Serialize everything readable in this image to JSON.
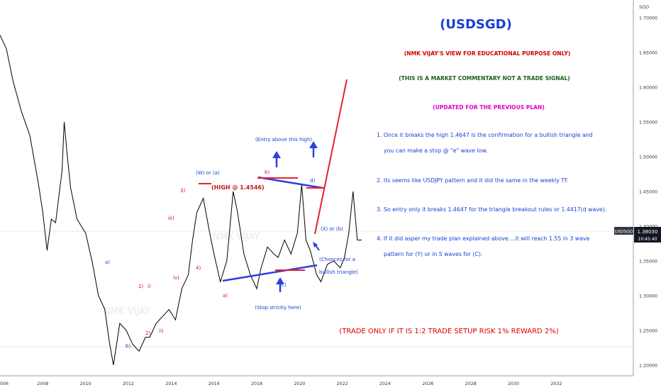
{
  "chart_data": {
    "type": "line",
    "symbol": "USDSGD",
    "title": "(USDSGD)",
    "currency": "SGD",
    "last_price": "1.38030",
    "countdown": "10:45:40",
    "price_badge_label": "USDSGD",
    "price_badge_value": "1.38030",
    "ylim": [
      1.1845,
      1.7255
    ],
    "xlim": [
      2006.0,
      2035.6
    ],
    "y_ticks": [
      "1.70000",
      "1.65000",
      "1.60000",
      "1.55000",
      "1.50000",
      "1.45000",
      "1.40000",
      "1.35000",
      "1.30000",
      "1.25000",
      "1.20000"
    ],
    "x_ticks": [
      "006",
      "2008",
      "2010",
      "2012",
      "2014",
      "2016",
      "2018",
      "2020",
      "2022",
      "2024",
      "2026",
      "2028",
      "2030",
      "2032"
    ],
    "series": [
      {
        "x": [
          2006.0,
          2006.3,
          2006.6,
          2007.0,
          2007.4,
          2007.8,
          2008.0,
          2008.2,
          2008.4,
          2008.6,
          2008.9,
          2009.0,
          2009.15,
          2009.3,
          2009.6,
          2010.0,
          2010.3,
          2010.6,
          2010.9,
          2011.1,
          2011.3,
          2011.6,
          2011.9,
          2012.2,
          2012.5,
          2012.8,
          2013.0,
          2013.3,
          2013.6,
          2013.9,
          2014.2,
          2014.5,
          2014.8,
          2015.0,
          2015.2,
          2015.5,
          2015.8,
          2016.0,
          2016.3,
          2016.6,
          2016.9,
          2017.1,
          2017.4,
          2017.7,
          2018.0,
          2018.2,
          2018.5,
          2018.8,
          2019.0,
          2019.3,
          2019.6,
          2019.9,
          2020.1,
          2020.3,
          2020.5,
          2020.8,
          2021.0,
          2021.3,
          2021.6,
          2021.9,
          2022.1,
          2022.3,
          2022.5,
          2022.7,
          2022.9
        ],
        "y": [
          1.675,
          1.655,
          1.61,
          1.565,
          1.53,
          1.46,
          1.42,
          1.365,
          1.41,
          1.405,
          1.48,
          1.55,
          1.5,
          1.455,
          1.41,
          1.39,
          1.35,
          1.3,
          1.28,
          1.235,
          1.2,
          1.26,
          1.25,
          1.23,
          1.22,
          1.24,
          1.24,
          1.26,
          1.27,
          1.28,
          1.265,
          1.31,
          1.33,
          1.38,
          1.42,
          1.44,
          1.39,
          1.36,
          1.32,
          1.35,
          1.45,
          1.42,
          1.36,
          1.33,
          1.31,
          1.34,
          1.37,
          1.36,
          1.355,
          1.38,
          1.36,
          1.39,
          1.46,
          1.38,
          1.365,
          1.33,
          1.32,
          1.345,
          1.35,
          1.34,
          1.355,
          1.39,
          1.45,
          1.38,
          1.38
        ]
      }
    ]
  },
  "annotations": {
    "disclaimer": "(NMK VIJAY'S VIEW FOR EDUCATIONAL PURPOSE ONLY)",
    "commentary": "(THIS IS A MARKET COMMENTARY NOT A TRADE SIGNAL)",
    "updated": "(UPDATED FOR THE PREVIOUS PLAN)",
    "points": [
      "1. Once it breaks the high 1.4647 is the confirmation for a bullish triangle and",
      "you can make a stop @ \"e\" wave low.",
      "2. Its seems like USDJPY pattern and it did the same in the weekly TF.",
      "3. So entry only it breaks 1.4647 for the triangle breakout rules or 1.4417(d wave).",
      "4. If it did asper my trade plan explained above....it will reach 1.55 in 3 wave",
      "pattern for (Y) or in 5 waves for (C)."
    ],
    "risk_note": "(TRADE ONLY IF IT IS 1:2 TRADE SETUP RISK 1% REWARD 2%)",
    "entry_label": "(Entry above this high)",
    "stop_label": "(Stop strictly here)",
    "chances_line1": "(Chances for a",
    "chances_line2": "bullish triangle)",
    "high_label": "(HIGH @ 1.4546)",
    "w_label": "(W) or (a)",
    "x_label": "(X) or (b)",
    "waves": {
      "a_blue": "a)",
      "b_blue": "b)",
      "one": "1)",
      "i": "i)",
      "two": "2)",
      "ii": "ii)",
      "iii": "iii)",
      "three": "3)",
      "iv": "iv)",
      "four": "4)",
      "a_red": "a)",
      "b_red": "b)",
      "c_blue": "c)",
      "d_blue": "d)"
    },
    "colors": {
      "title": "#1a3ed4",
      "disclaimer": "#d40000",
      "commentary": "#1d5e1d",
      "updated": "#e000c8",
      "points": "#1a3ed4",
      "risk": "#e00000",
      "line": "#000000",
      "trend": "#2a3fe0",
      "red": "#e3222f",
      "wave_blue": "#1a3ed4",
      "wave_red": "#c81414"
    }
  }
}
